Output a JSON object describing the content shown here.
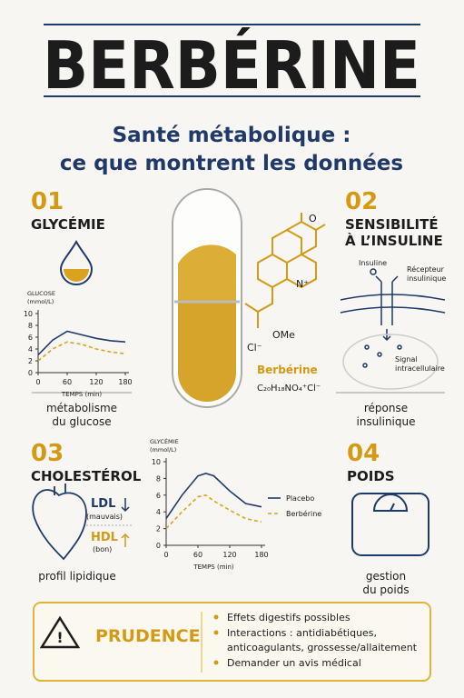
{
  "title": "BERBÉRINE",
  "subtitle": [
    "Santé métabolique :",
    "ce que montrent les données"
  ],
  "glycemia": {
    "number": "01",
    "title": [
      "GLYCÉMIE"
    ],
    "caption": [
      "métabolisme",
      "du glucose"
    ]
  },
  "insulin": {
    "number": "02",
    "title": [
      "SENSIBILITÉ",
      "À L’INSULINE"
    ],
    "labels": {
      "insulin": "Insuline",
      "receptor": [
        "Récepteur",
        "insulinique"
      ],
      "signal": [
        "Signal",
        "intracellulaire"
      ]
    },
    "caption": [
      "réponse",
      "insulinique"
    ]
  },
  "cholesterol": {
    "number": "03",
    "title": [
      "CHOLESTÉROL"
    ],
    "ldl": "LDL",
    "ldl_note": "(mauvais)",
    "hdl": "HDL",
    "hdl_note": "(bon)",
    "caption": [
      "profil lipidique"
    ]
  },
  "weight": {
    "number": "04",
    "title": [
      "POIDS"
    ],
    "caption": [
      "gestion",
      "du poids"
    ]
  },
  "molecule": {
    "labels": [
      "O",
      "N⁺",
      "OMe",
      "Cl⁻"
    ],
    "name": "Berbérine",
    "formula": "C₂₀H₁₈NO₄⁺Cl⁻"
  },
  "warning": {
    "title": "PRUDENCE",
    "items": [
      [
        "Effets digestifs possibles"
      ],
      [
        "Interactions : antidiabétiques,",
        "anticoagulants, grossesse/allaitement"
      ],
      [
        "Demander un avis médical"
      ]
    ]
  },
  "chart_data": [
    {
      "type": "line",
      "ylabel": [
        "GLUCOSE",
        "(mmol/L)"
      ],
      "xlabel": "TEMPS (min)",
      "x": [
        0,
        30,
        60,
        90,
        120,
        150,
        180
      ],
      "series": [
        {
          "color": "#1f3a68",
          "dash": false,
          "values": [
            3,
            5.5,
            7,
            6.4,
            5.8,
            5.4,
            5.2
          ]
        },
        {
          "color": "#d9a31f",
          "dash": true,
          "values": [
            2,
            4,
            5.2,
            4.8,
            4,
            3.5,
            3.2
          ]
        }
      ],
      "xlim": [
        0,
        180
      ],
      "ylim": [
        0,
        10
      ],
      "xticks": [
        0,
        60,
        120,
        180
      ],
      "yticks": [
        0,
        2,
        4,
        6,
        8,
        10
      ]
    },
    {
      "type": "line",
      "ylabel": [
        "GLYCÉMIE",
        "(mmol/L)"
      ],
      "xlabel": "TEMPS (min)",
      "x": [
        0,
        30,
        60,
        75,
        90,
        120,
        150,
        180
      ],
      "series": [
        {
          "name": "Placebo",
          "color": "#1f3a68",
          "dash": false,
          "values": [
            3.2,
            6,
            8.3,
            8.6,
            8.3,
            6.5,
            5,
            4.6
          ]
        },
        {
          "name": "Berbérine",
          "color": "#d9a31f",
          "dash": true,
          "values": [
            2,
            4,
            5.8,
            6,
            5.3,
            4.2,
            3.2,
            2.8
          ]
        }
      ],
      "xlim": [
        0,
        180
      ],
      "ylim": [
        0,
        10
      ],
      "xticks": [
        0,
        60,
        120,
        180
      ],
      "yticks": [
        0,
        2,
        4,
        6,
        8,
        10
      ]
    }
  ]
}
